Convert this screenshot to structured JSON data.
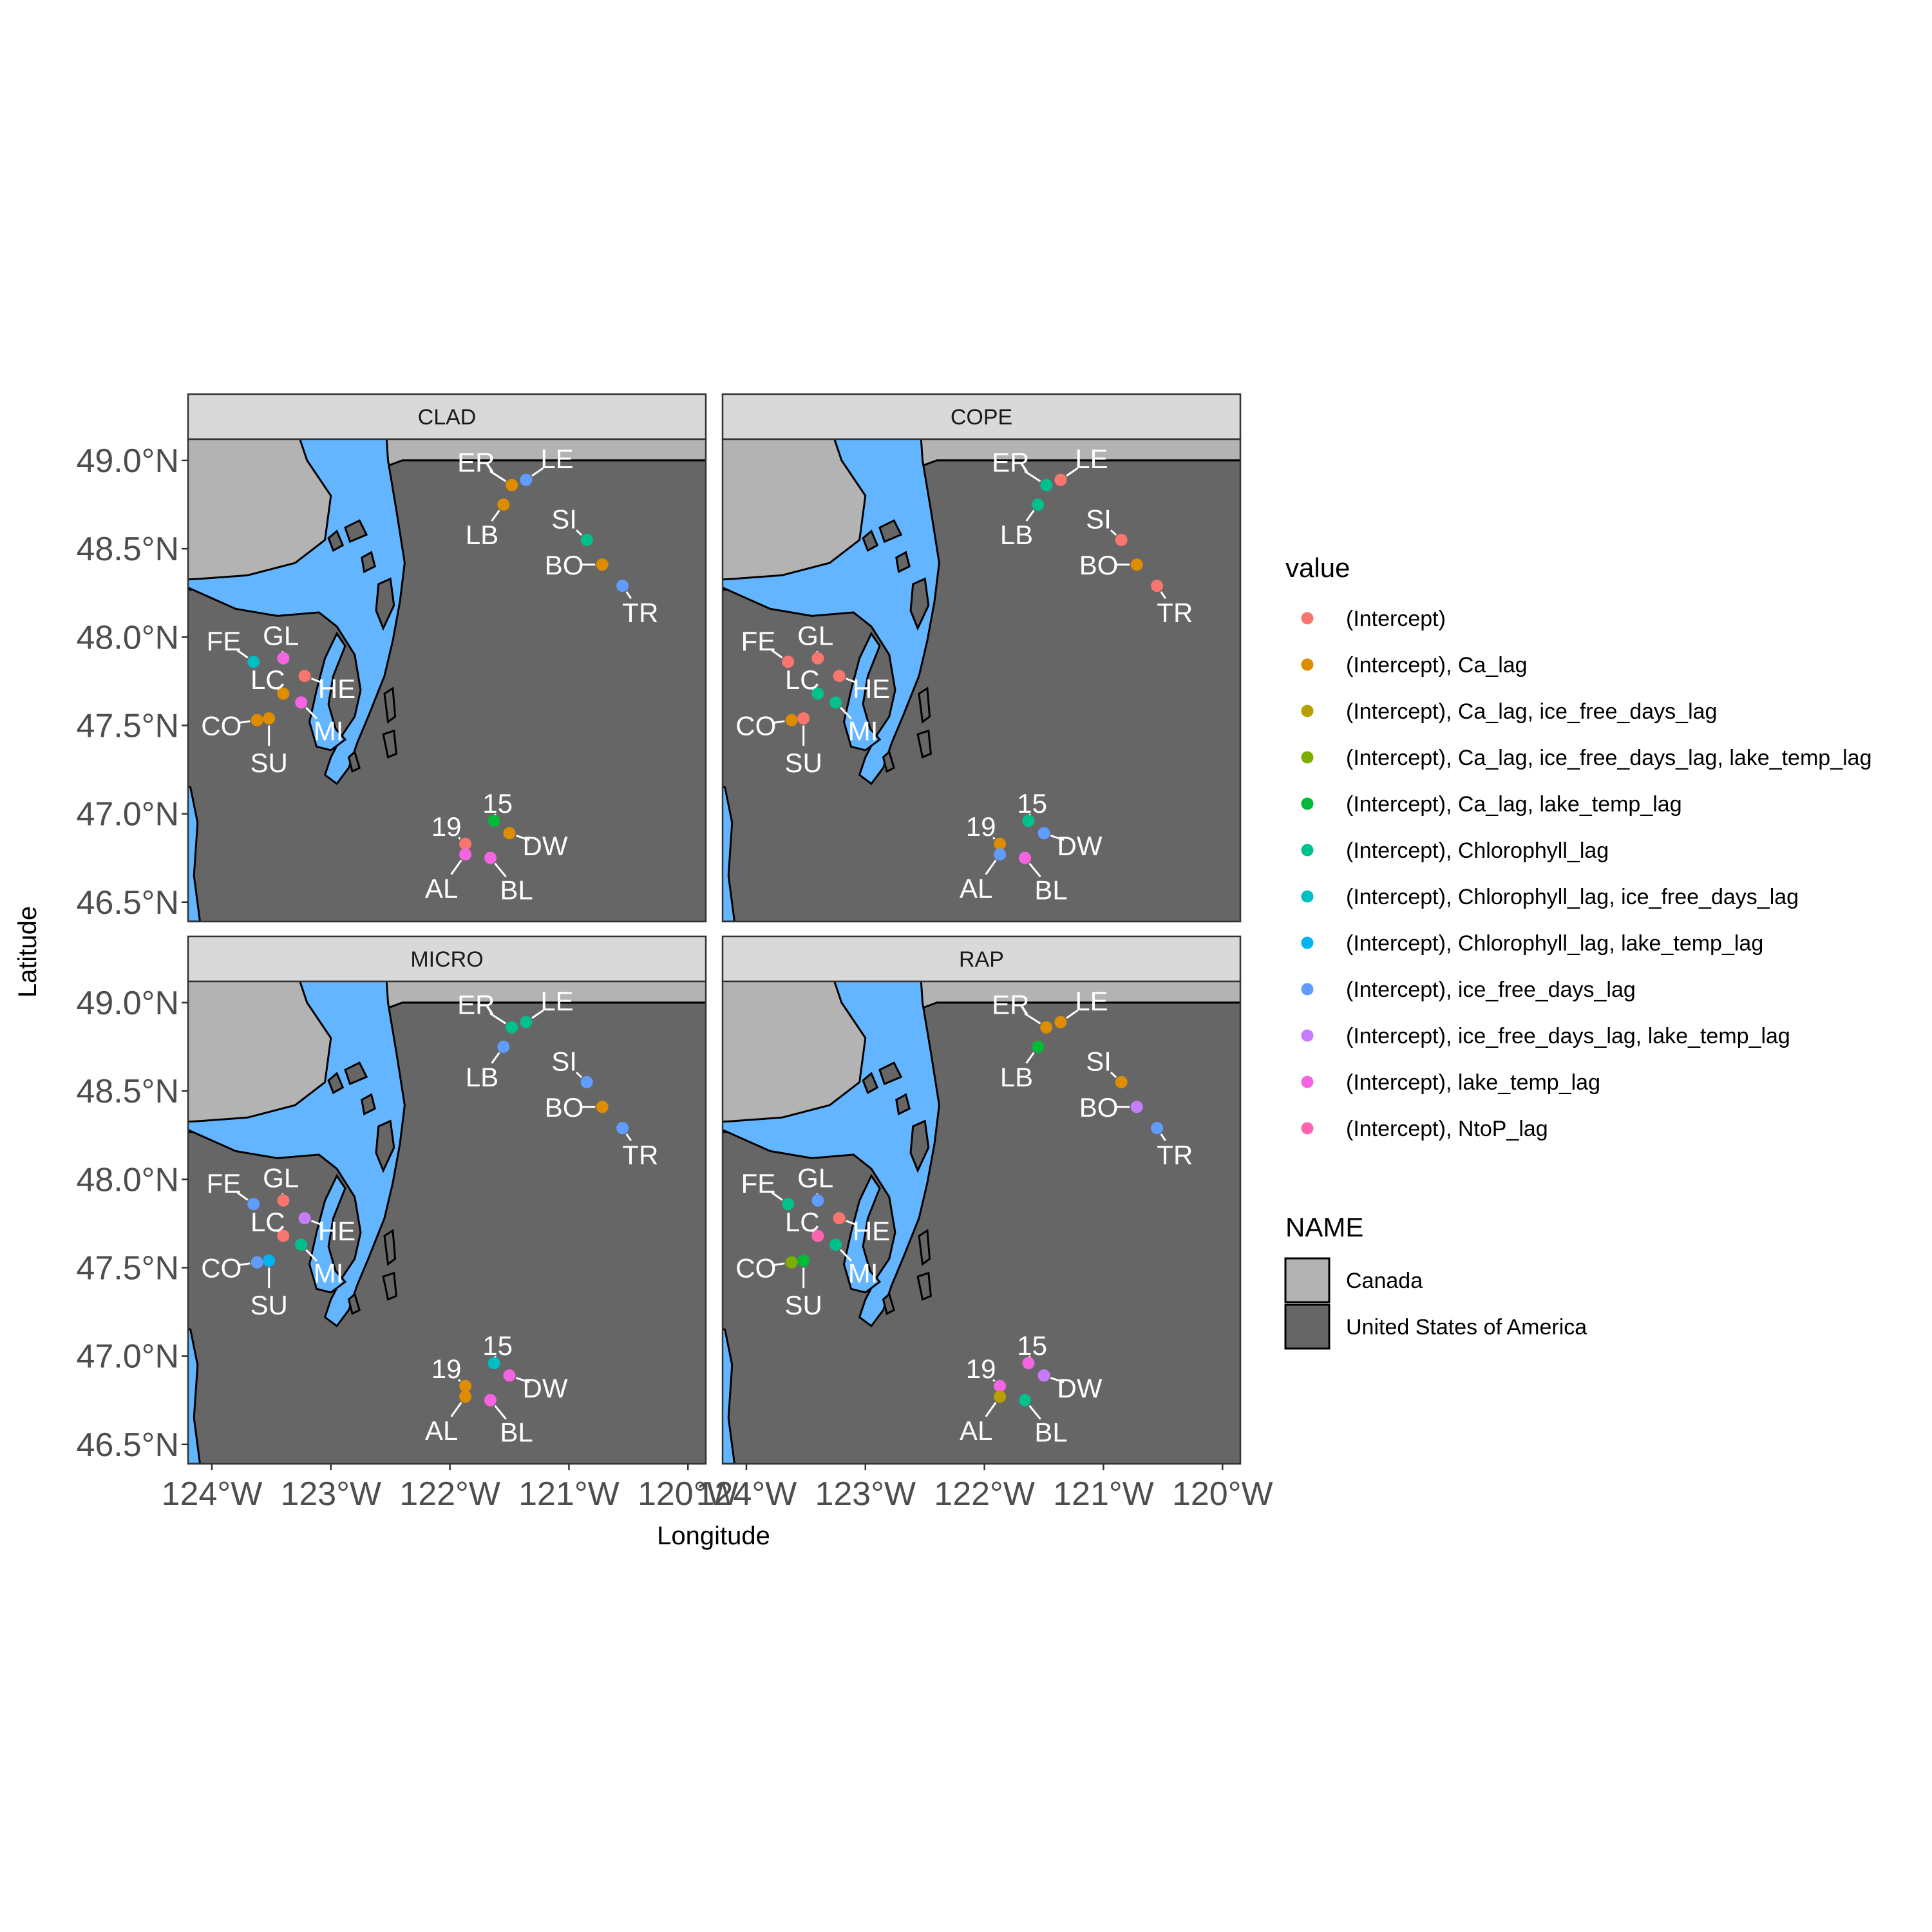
{
  "axes": {
    "x_title": "Longitude",
    "y_title": "Latitude",
    "x_ticks": [
      "124°W",
      "123°W",
      "122°W",
      "121°W",
      "120°W"
    ],
    "x_tick_values": [
      -124,
      -123,
      -122,
      -121,
      -120
    ],
    "y_ticks": [
      "49.0°N",
      "48.5°N",
      "48.0°N",
      "47.5°N",
      "47.0°N",
      "46.5°N"
    ],
    "y_tick_values": [
      49.0,
      48.5,
      48.0,
      47.5,
      47.0,
      46.5
    ],
    "xlim": [
      -124.2,
      -119.85
    ],
    "ylim": [
      46.39,
      49.12
    ]
  },
  "colors": {
    "water": "#63b5ff",
    "usa": "#666666",
    "canada": "#b3b3b3",
    "strip": "#d9d9d9",
    "outline": "#000000"
  },
  "legend": {
    "value_title": "value",
    "value_entries": [
      {
        "label": "(Intercept)",
        "color": "#f8766d"
      },
      {
        "label": "(Intercept), Ca_lag",
        "color": "#de8c00"
      },
      {
        "label": "(Intercept), Ca_lag, ice_free_days_lag",
        "color": "#b79f00"
      },
      {
        "label": "(Intercept), Ca_lag, ice_free_days_lag, lake_temp_lag",
        "color": "#7cae00"
      },
      {
        "label": "(Intercept), Ca_lag, lake_temp_lag",
        "color": "#00ba38"
      },
      {
        "label": "(Intercept), Chlorophyll_lag",
        "color": "#00c08b"
      },
      {
        "label": "(Intercept), Chlorophyll_lag, ice_free_days_lag",
        "color": "#00bfc4"
      },
      {
        "label": "(Intercept), Chlorophyll_lag, lake_temp_lag",
        "color": "#00b4f0"
      },
      {
        "label": "(Intercept), ice_free_days_lag",
        "color": "#619cff"
      },
      {
        "label": "(Intercept), ice_free_days_lag, lake_temp_lag",
        "color": "#c77cff"
      },
      {
        "label": "(Intercept), lake_temp_lag",
        "color": "#f564e3"
      },
      {
        "label": "(Intercept), NtoP_lag",
        "color": "#ff64b0"
      }
    ],
    "name_title": "NAME",
    "name_entries": [
      {
        "label": "Canada",
        "color": "#b3b3b3"
      },
      {
        "label": "United States of America",
        "color": "#666666"
      }
    ]
  },
  "sites": [
    {
      "code": "ER",
      "lon": -121.48,
      "lat": 48.86,
      "label_lon": -121.78,
      "label_lat": 48.99
    },
    {
      "code": "LE",
      "lon": -121.36,
      "lat": 48.89,
      "label_lon": -121.1,
      "label_lat": 49.01
    },
    {
      "code": "LB",
      "lon": -121.55,
      "lat": 48.75,
      "label_lon": -121.73,
      "label_lat": 48.58
    },
    {
      "code": "SI",
      "lon": -120.85,
      "lat": 48.55,
      "label_lon": -121.04,
      "label_lat": 48.67
    },
    {
      "code": "BO",
      "lon": -120.72,
      "lat": 48.41,
      "label_lon": -121.04,
      "label_lat": 48.41
    },
    {
      "code": "TR",
      "lon": -120.55,
      "lat": 48.29,
      "label_lon": -120.4,
      "label_lat": 48.14
    },
    {
      "code": "FE",
      "lon": -123.65,
      "lat": 47.86,
      "label_lon": -123.9,
      "label_lat": 47.98
    },
    {
      "code": "GL",
      "lon": -123.4,
      "lat": 47.88,
      "label_lon": -123.42,
      "label_lat": 48.01
    },
    {
      "code": "HE",
      "lon": -123.22,
      "lat": 47.78,
      "label_lon": -122.95,
      "label_lat": 47.71
    },
    {
      "code": "LC",
      "lon": -123.4,
      "lat": 47.68,
      "label_lon": -123.53,
      "label_lat": 47.76
    },
    {
      "code": "MI",
      "lon": -123.25,
      "lat": 47.63,
      "label_lon": -123.02,
      "label_lat": 47.47
    },
    {
      "code": "CO",
      "lon": -123.62,
      "lat": 47.53,
      "label_lon": -123.92,
      "label_lat": 47.5
    },
    {
      "code": "SU",
      "lon": -123.52,
      "lat": 47.54,
      "label_lon": -123.52,
      "label_lat": 47.29
    },
    {
      "code": "15",
      "lon": -121.63,
      "lat": 46.96,
      "label_lon": -121.6,
      "label_lat": 47.06
    },
    {
      "code": "19",
      "lon": -121.87,
      "lat": 46.83,
      "label_lon": -122.03,
      "label_lat": 46.93
    },
    {
      "code": "DW",
      "lon": -121.5,
      "lat": 46.89,
      "label_lon": -121.2,
      "label_lat": 46.82
    },
    {
      "code": "AL",
      "lon": -121.87,
      "lat": 46.77,
      "label_lon": -122.07,
      "label_lat": 46.58
    },
    {
      "code": "BL",
      "lon": -121.66,
      "lat": 46.75,
      "label_lon": -121.44,
      "label_lat": 46.57
    }
  ],
  "panels": [
    {
      "title": "CLAD",
      "colors": {
        "ER": "#de8c00",
        "LE": "#619cff",
        "LB": "#de8c00",
        "SI": "#00c08b",
        "BO": "#de8c00",
        "TR": "#619cff",
        "FE": "#00bfc4",
        "GL": "#f564e3",
        "HE": "#f8766d",
        "LC": "#de8c00",
        "MI": "#f564e3",
        "CO": "#de8c00",
        "SU": "#de8c00",
        "15": "#00ba38",
        "19": "#f8766d",
        "DW": "#de8c00",
        "AL": "#f564e3",
        "BL": "#f564e3"
      }
    },
    {
      "title": "COPE",
      "colors": {
        "ER": "#00c08b",
        "LE": "#f8766d",
        "LB": "#00c08b",
        "SI": "#f8766d",
        "BO": "#de8c00",
        "TR": "#f8766d",
        "FE": "#f8766d",
        "GL": "#f8766d",
        "HE": "#f8766d",
        "LC": "#00c08b",
        "MI": "#00c08b",
        "CO": "#de8c00",
        "SU": "#f8766d",
        "15": "#00c08b",
        "19": "#de8c00",
        "DW": "#619cff",
        "AL": "#619cff",
        "BL": "#f564e3"
      }
    },
    {
      "title": "MICRO",
      "colors": {
        "ER": "#00c08b",
        "LE": "#00c08b",
        "LB": "#619cff",
        "SI": "#619cff",
        "BO": "#de8c00",
        "TR": "#619cff",
        "FE": "#619cff",
        "GL": "#f8766d",
        "HE": "#c77cff",
        "LC": "#f8766d",
        "MI": "#00c08b",
        "CO": "#619cff",
        "SU": "#00b4f0",
        "15": "#00bfc4",
        "19": "#de8c00",
        "DW": "#f564e3",
        "AL": "#de8c00",
        "BL": "#f564e3"
      }
    },
    {
      "title": "RAP",
      "colors": {
        "ER": "#de8c00",
        "LE": "#de8c00",
        "LB": "#00ba38",
        "SI": "#de8c00",
        "BO": "#c77cff",
        "TR": "#619cff",
        "FE": "#00c08b",
        "GL": "#619cff",
        "HE": "#f8766d",
        "LC": "#ff64b0",
        "MI": "#00c08b",
        "CO": "#7cae00",
        "SU": "#00ba38",
        "15": "#f564e3",
        "19": "#f564e3",
        "DW": "#c77cff",
        "AL": "#b79f00",
        "BL": "#00c08b"
      }
    }
  ]
}
